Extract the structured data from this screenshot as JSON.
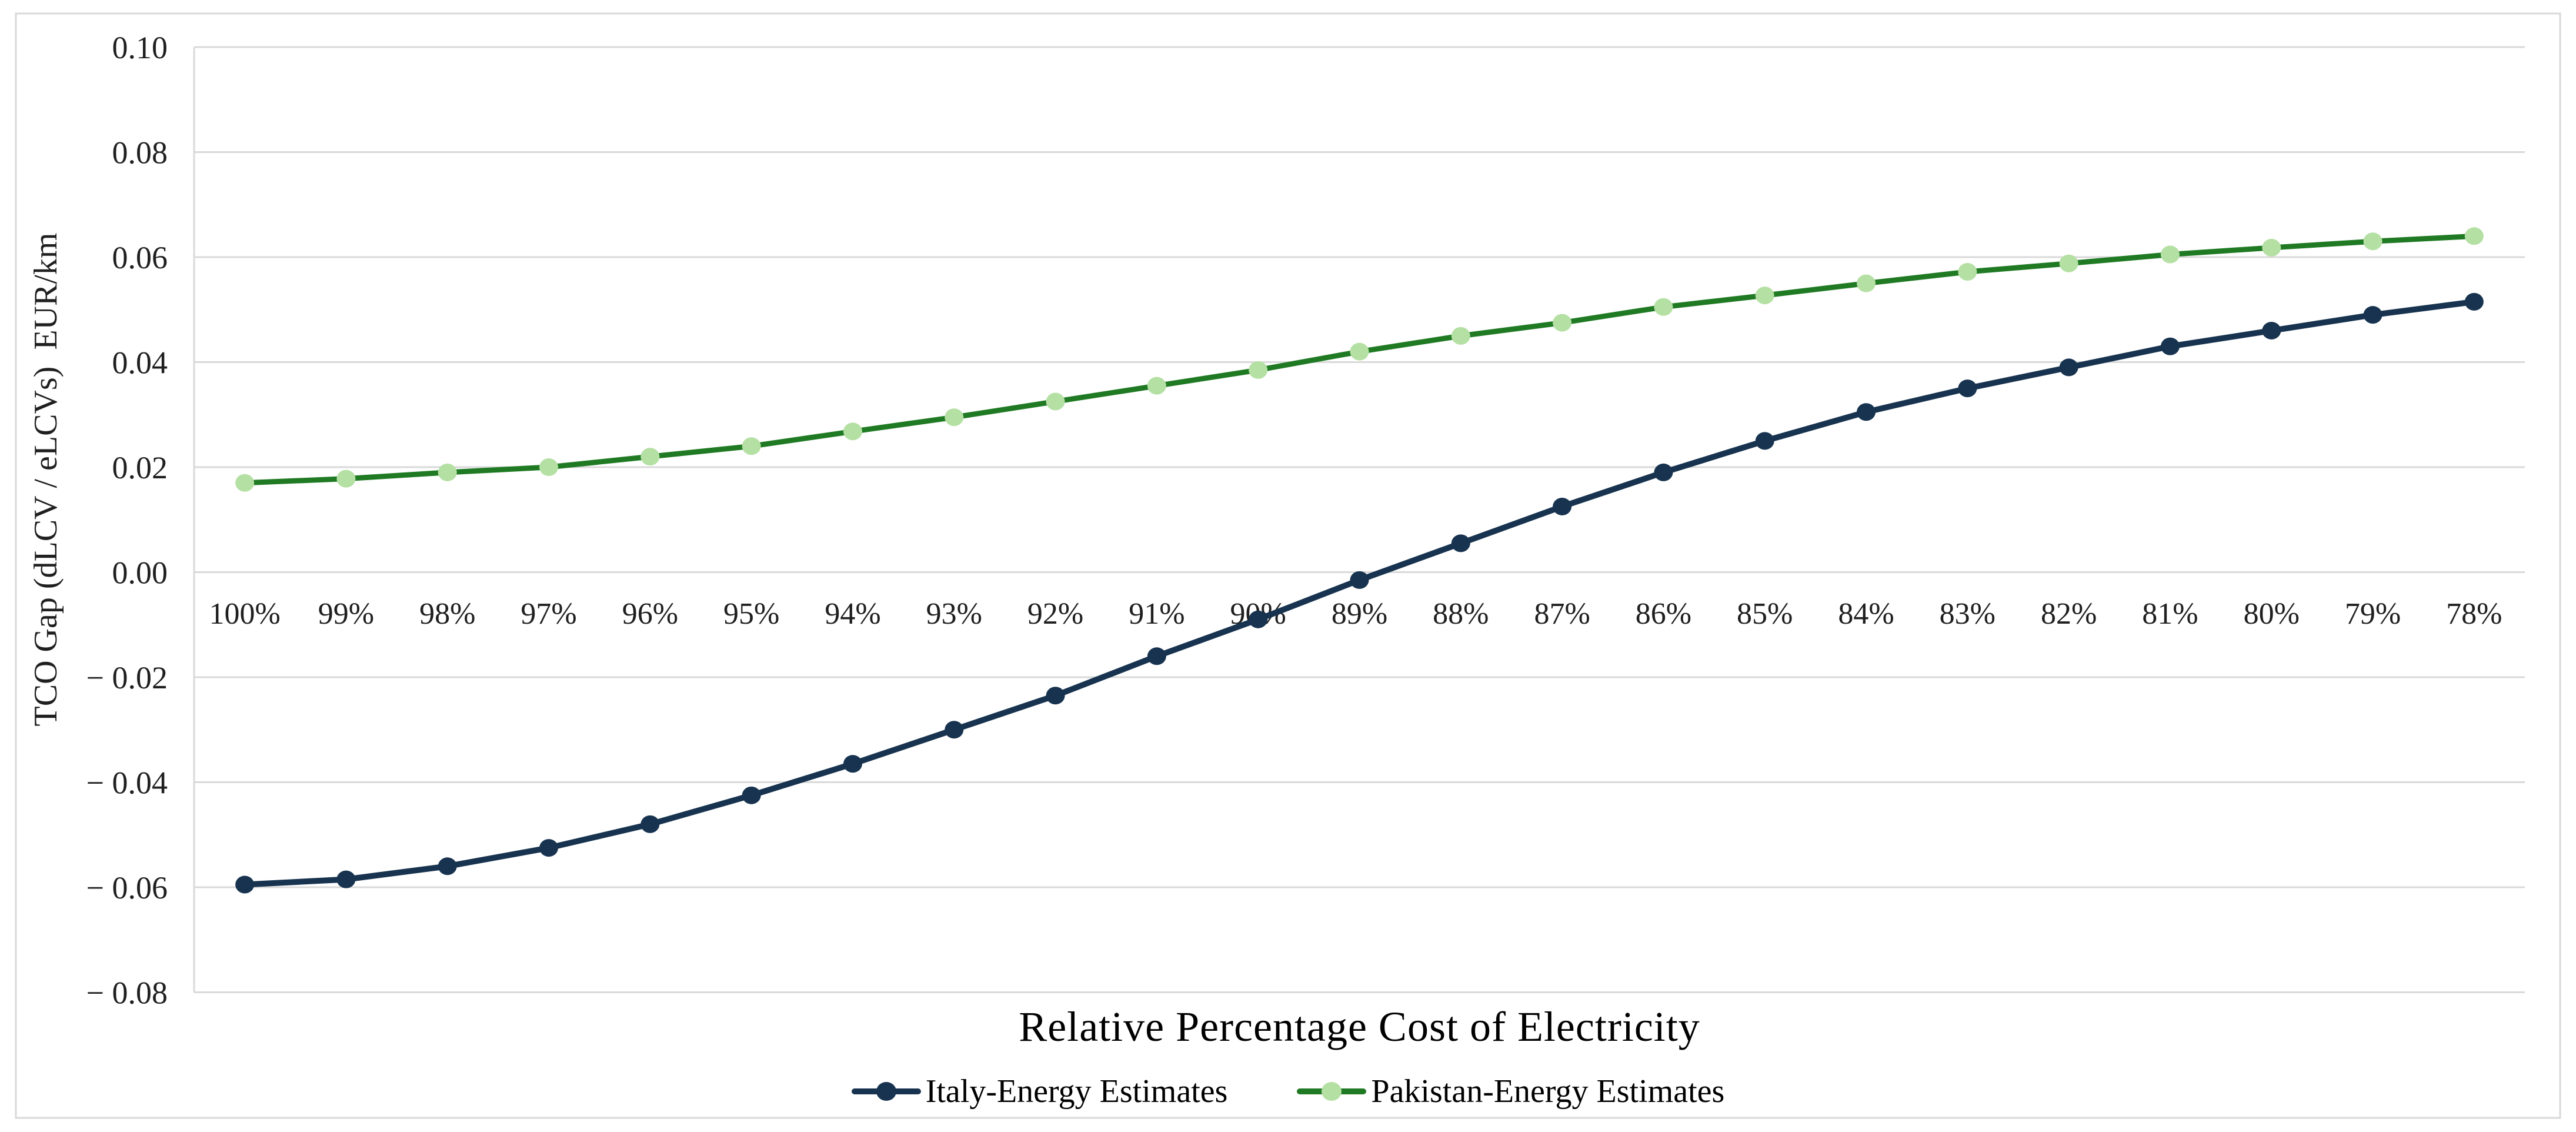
{
  "chart_data": {
    "type": "line",
    "xlabel": "Relative Percentage Cost of Electricity",
    "ylabel": "TCO Gap (dLCV / eLCVs)  EUR/km",
    "categories": [
      "100%",
      "99%",
      "98%",
      "97%",
      "96%",
      "95%",
      "94%",
      "93%",
      "92%",
      "91%",
      "90%",
      "89%",
      "88%",
      "87%",
      "86%",
      "85%",
      "84%",
      "83%",
      "82%",
      "81%",
      "80%",
      "79%",
      "78%"
    ],
    "series": [
      {
        "name": "Italy-Energy Estimates",
        "line_color": "#17334F",
        "marker_color": "#17334F",
        "values": [
          -0.0595,
          -0.0585,
          -0.056,
          -0.0525,
          -0.048,
          -0.0425,
          -0.0365,
          -0.03,
          -0.0235,
          -0.016,
          -0.009,
          -0.0015,
          0.0055,
          0.0125,
          0.019,
          0.025,
          0.0305,
          0.035,
          0.039,
          0.043,
          0.046,
          0.049,
          0.0515
        ]
      },
      {
        "name": "Pakistan-Energy Estimates",
        "line_color": "#1F7A23",
        "marker_color": "#B5E0A4",
        "values": [
          0.017,
          0.0178,
          0.019,
          0.02,
          0.022,
          0.024,
          0.0268,
          0.0295,
          0.0325,
          0.0355,
          0.0385,
          0.042,
          0.045,
          0.0475,
          0.0505,
          0.0527,
          0.055,
          0.0572,
          0.0588,
          0.0605,
          0.0618,
          0.063,
          0.064
        ]
      }
    ],
    "y_ticks": [
      {
        "value": 0.1,
        "label": "0.10"
      },
      {
        "value": 0.08,
        "label": "0.08"
      },
      {
        "value": 0.06,
        "label": "0.06"
      },
      {
        "value": 0.04,
        "label": "0.04"
      },
      {
        "value": 0.02,
        "label": "0.02"
      },
      {
        "value": 0.0,
        "label": "0.00"
      },
      {
        "value": -0.02,
        "label": "− 0.02"
      },
      {
        "value": -0.04,
        "label": "− 0.04"
      },
      {
        "value": -0.06,
        "label": "− 0.06"
      },
      {
        "value": -0.08,
        "label": "− 0.08"
      }
    ],
    "ylim": [
      -0.08,
      0.1
    ],
    "grid": true,
    "legend_position": "bottom",
    "colors": {
      "gridline": "#D9D9D9",
      "frame": "#D9D9D9",
      "tick_text": "#1F1F1F",
      "background": "#FFFFFF"
    }
  }
}
